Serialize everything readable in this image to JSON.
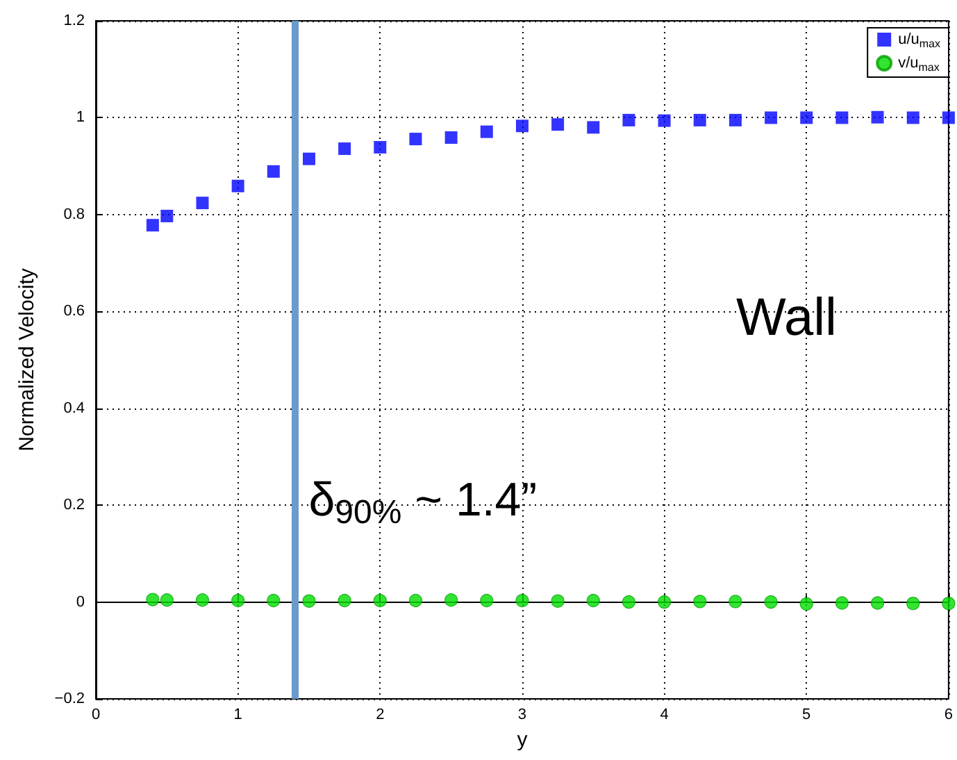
{
  "chart_data": {
    "type": "scatter",
    "xlabel": "y",
    "ylabel": "Normalized Velocity",
    "x": [
      0.4,
      0.5,
      0.75,
      1.0,
      1.25,
      1.5,
      1.75,
      2.0,
      2.25,
      2.5,
      2.75,
      3.0,
      3.25,
      3.5,
      3.75,
      4.0,
      4.25,
      4.5,
      4.75,
      5.0,
      5.25,
      5.5,
      5.75,
      6.0
    ],
    "series": [
      {
        "name": "u/u$_{max}$",
        "color": "#0000ff",
        "marker": "square",
        "values": [
          0.778,
          0.797,
          0.824,
          0.859,
          0.889,
          0.915,
          0.936,
          0.939,
          0.956,
          0.959,
          0.971,
          0.983,
          0.986,
          0.98,
          0.995,
          0.994,
          0.995,
          0.995,
          1.0,
          1.0,
          1.0,
          1.001,
          1.0,
          1.0
        ]
      },
      {
        "name": "v/u$_{max}$",
        "color": "#00dd00",
        "marker": "circle",
        "values": [
          0.005,
          0.004,
          0.004,
          0.003,
          0.003,
          0.002,
          0.003,
          0.003,
          0.003,
          0.004,
          0.003,
          0.003,
          0.002,
          0.003,
          0.0,
          0.0,
          0.001,
          0.001,
          0.0,
          -0.004,
          -0.002,
          -0.002,
          -0.003,
          -0.003
        ]
      }
    ],
    "xlim": [
      0,
      6
    ],
    "xticks": [
      0,
      1,
      2,
      3,
      4,
      5,
      6
    ],
    "ylim": [
      -0.2,
      1.2
    ],
    "yticks": [
      -0.2,
      0,
      0.2,
      0.4,
      0.6,
      0.8,
      1,
      1.2
    ],
    "ref_lines": [
      {
        "axis": "x",
        "value": 1.4,
        "label": "δ$_{90%}$ ~ 1.4”",
        "color": "#6a9bcb"
      }
    ],
    "annotations": [
      "Wall"
    ],
    "grid": true,
    "legend": "top right"
  }
}
